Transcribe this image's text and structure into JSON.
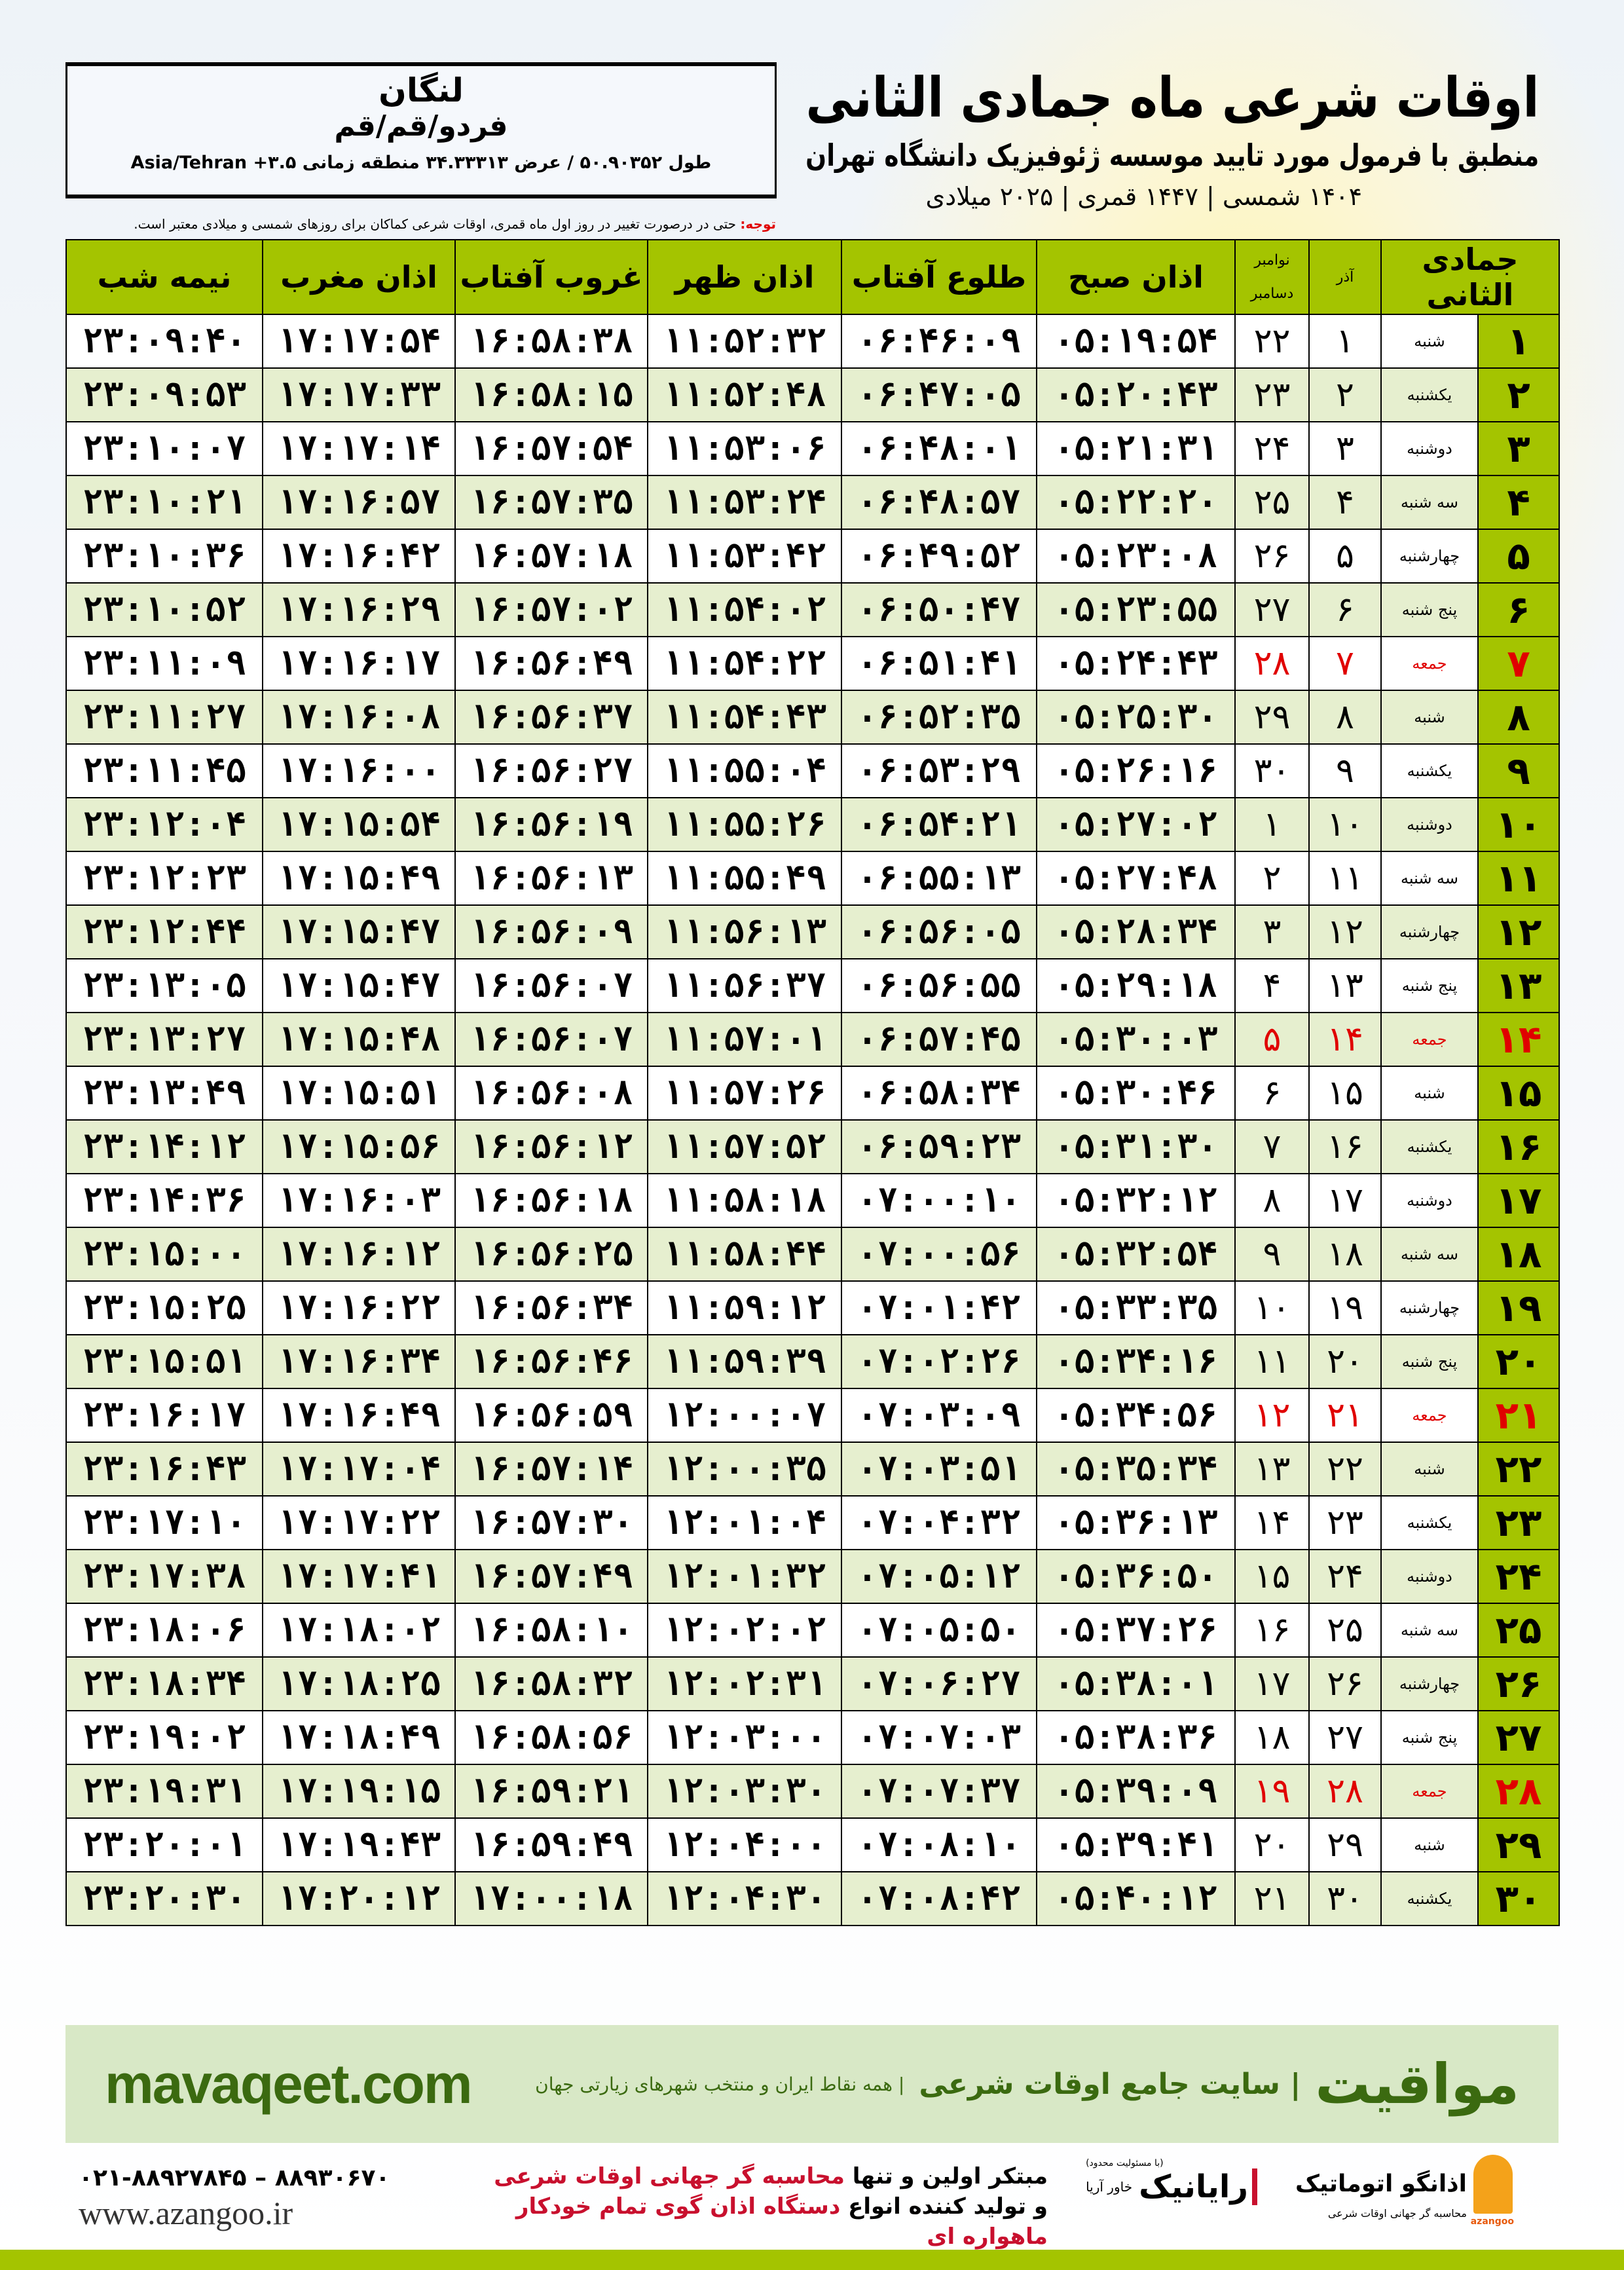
{
  "location": {
    "city": "لنگان",
    "province": "فردو/قم/قم",
    "coords": "طول ۵۰.۹۰۳۵۲ / عرض ۳۴.۳۳۳۱۳ منطقه زمانی ۳.۵+ Asia/Tehran"
  },
  "header": {
    "title": "اوقات شرعی ماه جمادی الثانی",
    "subtitle": "منطبق با فرمول مورد تایید موسسه ژئوفیزیک دانشگاه تهران",
    "years": "۱۴۰۴ شمسی | ۱۴۴۷ قمری | ۲۰۲۵ میلادی"
  },
  "note": {
    "label": "توجه:",
    "text": " حتی در درصورت تغییر در روز اول ماه قمری، اوقات شرعی کماکان برای روزهای شمسی و میلادی معتبر است."
  },
  "table": {
    "columns": [
      "جمادی الثانی",
      "آذر",
      "نوامبر / دسامبر",
      "اذان صبح",
      "طلوع آفتاب",
      "اذان ظهر",
      "غروب آفتاب",
      "اذان مغرب",
      "نیمه شب"
    ],
    "gregorian_months": [
      "نوامبر",
      "دسامبر"
    ],
    "holiday_weekday": "جمعه",
    "holiday_color": "#e00000",
    "rows": [
      [
        "۱",
        "شنبه",
        "۱",
        "۲۲",
        "۰۵:۱۹:۵۴",
        "۰۶:۴۶:۰۹",
        "۱۱:۵۲:۳۲",
        "۱۶:۵۸:۳۸",
        "۱۷:۱۷:۵۴",
        "۲۳:۰۹:۴۰"
      ],
      [
        "۲",
        "یکشنبه",
        "۲",
        "۲۳",
        "۰۵:۲۰:۴۳",
        "۰۶:۴۷:۰۵",
        "۱۱:۵۲:۴۸",
        "۱۶:۵۸:۱۵",
        "۱۷:۱۷:۳۳",
        "۲۳:۰۹:۵۳"
      ],
      [
        "۳",
        "دوشنبه",
        "۳",
        "۲۴",
        "۰۵:۲۱:۳۱",
        "۰۶:۴۸:۰۱",
        "۱۱:۵۳:۰۶",
        "۱۶:۵۷:۵۴",
        "۱۷:۱۷:۱۴",
        "۲۳:۱۰:۰۷"
      ],
      [
        "۴",
        "سه شنبه",
        "۴",
        "۲۵",
        "۰۵:۲۲:۲۰",
        "۰۶:۴۸:۵۷",
        "۱۱:۵۳:۲۴",
        "۱۶:۵۷:۳۵",
        "۱۷:۱۶:۵۷",
        "۲۳:۱۰:۲۱"
      ],
      [
        "۵",
        "چهارشنبه",
        "۵",
        "۲۶",
        "۰۵:۲۳:۰۸",
        "۰۶:۴۹:۵۲",
        "۱۱:۵۳:۴۲",
        "۱۶:۵۷:۱۸",
        "۱۷:۱۶:۴۲",
        "۲۳:۱۰:۳۶"
      ],
      [
        "۶",
        "پنج شنبه",
        "۶",
        "۲۷",
        "۰۵:۲۳:۵۵",
        "۰۶:۵۰:۴۷",
        "۱۱:۵۴:۰۲",
        "۱۶:۵۷:۰۲",
        "۱۷:۱۶:۲۹",
        "۲۳:۱۰:۵۲"
      ],
      [
        "۷",
        "جمعه",
        "۷",
        "۲۸",
        "۰۵:۲۴:۴۳",
        "۰۶:۵۱:۴۱",
        "۱۱:۵۴:۲۲",
        "۱۶:۵۶:۴۹",
        "۱۷:۱۶:۱۷",
        "۲۳:۱۱:۰۹"
      ],
      [
        "۸",
        "شنبه",
        "۸",
        "۲۹",
        "۰۵:۲۵:۳۰",
        "۰۶:۵۲:۳۵",
        "۱۱:۵۴:۴۳",
        "۱۶:۵۶:۳۷",
        "۱۷:۱۶:۰۸",
        "۲۳:۱۱:۲۷"
      ],
      [
        "۹",
        "یکشنبه",
        "۹",
        "۳۰",
        "۰۵:۲۶:۱۶",
        "۰۶:۵۳:۲۹",
        "۱۱:۵۵:۰۴",
        "۱۶:۵۶:۲۷",
        "۱۷:۱۶:۰۰",
        "۲۳:۱۱:۴۵"
      ],
      [
        "۱۰",
        "دوشنبه",
        "۱۰",
        "۱",
        "۰۵:۲۷:۰۲",
        "۰۶:۵۴:۲۱",
        "۱۱:۵۵:۲۶",
        "۱۶:۵۶:۱۹",
        "۱۷:۱۵:۵۴",
        "۲۳:۱۲:۰۴"
      ],
      [
        "۱۱",
        "سه شنبه",
        "۱۱",
        "۲",
        "۰۵:۲۷:۴۸",
        "۰۶:۵۵:۱۳",
        "۱۱:۵۵:۴۹",
        "۱۶:۵۶:۱۳",
        "۱۷:۱۵:۴۹",
        "۲۳:۱۲:۲۳"
      ],
      [
        "۱۲",
        "چهارشنبه",
        "۱۲",
        "۳",
        "۰۵:۲۸:۳۴",
        "۰۶:۵۶:۰۵",
        "۱۱:۵۶:۱۳",
        "۱۶:۵۶:۰۹",
        "۱۷:۱۵:۴۷",
        "۲۳:۱۲:۴۴"
      ],
      [
        "۱۳",
        "پنج شنبه",
        "۱۳",
        "۴",
        "۰۵:۲۹:۱۸",
        "۰۶:۵۶:۵۵",
        "۱۱:۵۶:۳۷",
        "۱۶:۵۶:۰۷",
        "۱۷:۱۵:۴۷",
        "۲۳:۱۳:۰۵"
      ],
      [
        "۱۴",
        "جمعه",
        "۱۴",
        "۵",
        "۰۵:۳۰:۰۳",
        "۰۶:۵۷:۴۵",
        "۱۱:۵۷:۰۱",
        "۱۶:۵۶:۰۷",
        "۱۷:۱۵:۴۸",
        "۲۳:۱۳:۲۷"
      ],
      [
        "۱۵",
        "شنبه",
        "۱۵",
        "۶",
        "۰۵:۳۰:۴۶",
        "۰۶:۵۸:۳۴",
        "۱۱:۵۷:۲۶",
        "۱۶:۵۶:۰۸",
        "۱۷:۱۵:۵۱",
        "۲۳:۱۳:۴۹"
      ],
      [
        "۱۶",
        "یکشنبه",
        "۱۶",
        "۷",
        "۰۵:۳۱:۳۰",
        "۰۶:۵۹:۲۳",
        "۱۱:۵۷:۵۲",
        "۱۶:۵۶:۱۲",
        "۱۷:۱۵:۵۶",
        "۲۳:۱۴:۱۲"
      ],
      [
        "۱۷",
        "دوشنبه",
        "۱۷",
        "۸",
        "۰۵:۳۲:۱۲",
        "۰۷:۰۰:۱۰",
        "۱۱:۵۸:۱۸",
        "۱۶:۵۶:۱۸",
        "۱۷:۱۶:۰۳",
        "۲۳:۱۴:۳۶"
      ],
      [
        "۱۸",
        "سه شنبه",
        "۱۸",
        "۹",
        "۰۵:۳۲:۵۴",
        "۰۷:۰۰:۵۶",
        "۱۱:۵۸:۴۴",
        "۱۶:۵۶:۲۵",
        "۱۷:۱۶:۱۲",
        "۲۳:۱۵:۰۰"
      ],
      [
        "۱۹",
        "چهارشنبه",
        "۱۹",
        "۱۰",
        "۰۵:۳۳:۳۵",
        "۰۷:۰۱:۴۲",
        "۱۱:۵۹:۱۲",
        "۱۶:۵۶:۳۴",
        "۱۷:۱۶:۲۲",
        "۲۳:۱۵:۲۵"
      ],
      [
        "۲۰",
        "پنج شنبه",
        "۲۰",
        "۱۱",
        "۰۵:۳۴:۱۶",
        "۰۷:۰۲:۲۶",
        "۱۱:۵۹:۳۹",
        "۱۶:۵۶:۴۶",
        "۱۷:۱۶:۳۴",
        "۲۳:۱۵:۵۱"
      ],
      [
        "۲۱",
        "جمعه",
        "۲۱",
        "۱۲",
        "۰۵:۳۴:۵۶",
        "۰۷:۰۳:۰۹",
        "۱۲:۰۰:۰۷",
        "۱۶:۵۶:۵۹",
        "۱۷:۱۶:۴۹",
        "۲۳:۱۶:۱۷"
      ],
      [
        "۲۲",
        "شنبه",
        "۲۲",
        "۱۳",
        "۰۵:۳۵:۳۴",
        "۰۷:۰۳:۵۱",
        "۱۲:۰۰:۳۵",
        "۱۶:۵۷:۱۴",
        "۱۷:۱۷:۰۴",
        "۲۳:۱۶:۴۳"
      ],
      [
        "۲۳",
        "یکشنبه",
        "۲۳",
        "۱۴",
        "۰۵:۳۶:۱۳",
        "۰۷:۰۴:۳۲",
        "۱۲:۰۱:۰۴",
        "۱۶:۵۷:۳۰",
        "۱۷:۱۷:۲۲",
        "۲۳:۱۷:۱۰"
      ],
      [
        "۲۴",
        "دوشنبه",
        "۲۴",
        "۱۵",
        "۰۵:۳۶:۵۰",
        "۰۷:۰۵:۱۲",
        "۱۲:۰۱:۳۲",
        "۱۶:۵۷:۴۹",
        "۱۷:۱۷:۴۱",
        "۲۳:۱۷:۳۸"
      ],
      [
        "۲۵",
        "سه شنبه",
        "۲۵",
        "۱۶",
        "۰۵:۳۷:۲۶",
        "۰۷:۰۵:۵۰",
        "۱۲:۰۲:۰۲",
        "۱۶:۵۸:۱۰",
        "۱۷:۱۸:۰۲",
        "۲۳:۱۸:۰۶"
      ],
      [
        "۲۶",
        "چهارشنبه",
        "۲۶",
        "۱۷",
        "۰۵:۳۸:۰۱",
        "۰۷:۰۶:۲۷",
        "۱۲:۰۲:۳۱",
        "۱۶:۵۸:۳۲",
        "۱۷:۱۸:۲۵",
        "۲۳:۱۸:۳۴"
      ],
      [
        "۲۷",
        "پنج شنبه",
        "۲۷",
        "۱۸",
        "۰۵:۳۸:۳۶",
        "۰۷:۰۷:۰۳",
        "۱۲:۰۳:۰۰",
        "۱۶:۵۸:۵۶",
        "۱۷:۱۸:۴۹",
        "۲۳:۱۹:۰۲"
      ],
      [
        "۲۸",
        "جمعه",
        "۲۸",
        "۱۹",
        "۰۵:۳۹:۰۹",
        "۰۷:۰۷:۳۷",
        "۱۲:۰۳:۳۰",
        "۱۶:۵۹:۲۱",
        "۱۷:۱۹:۱۵",
        "۲۳:۱۹:۳۱"
      ],
      [
        "۲۹",
        "شنبه",
        "۲۹",
        "۲۰",
        "۰۵:۳۹:۴۱",
        "۰۷:۰۸:۱۰",
        "۱۲:۰۴:۰۰",
        "۱۶:۵۹:۴۹",
        "۱۷:۱۹:۴۳",
        "۲۳:۲۰:۰۱"
      ],
      [
        "۳۰",
        "یکشنبه",
        "۳۰",
        "۲۱",
        "۰۵:۴۰:۱۲",
        "۰۷:۰۸:۴۲",
        "۱۲:۰۴:۳۰",
        "۱۷:۰۰:۱۸",
        "۱۷:۲۰:۱۲",
        "۲۳:۲۰:۳۰"
      ]
    ]
  },
  "banner": {
    "site": "mavaqeet.com",
    "brand": "مواقیت",
    "tagline": "| سایت جامع اوقات شرعی",
    "tagline2": "| همه نقاط ایران و منتخب شهرهای زیارتی جهان"
  },
  "footer": {
    "phone": "۰۲۱-۸۸۹۲۷۸۴۵ – ۸۸۹۳۰۶۷۰",
    "website": "www.azangoo.ir",
    "promo_line1_a": "مبتکر اولین و تنها ",
    "promo_line1_b": "محاسبه گر جهانی اوقات شرعی",
    "promo_line2_a": "و تولید کننده انواع ",
    "promo_line2_b": "دستگاه اذان گوی تمام خودکار ماهواره ای",
    "raynik_logo": "رایانیک",
    "raynik_sub": "خاور آریا",
    "raynik_note": "(با مسئولیت محدود)",
    "azangoo_logo": "اذانگو اتوماتیک",
    "azangoo_sub": "محاسبه گر جهانی اوقات شرعی",
    "azangoo_latin": "azangoo"
  },
  "colors": {
    "header_green": "#a4c400",
    "row_alt": "#e6efcf",
    "brand_green": "#3b6a10",
    "banner_bg": "#d8e8c6",
    "holiday_red": "#e00000"
  }
}
